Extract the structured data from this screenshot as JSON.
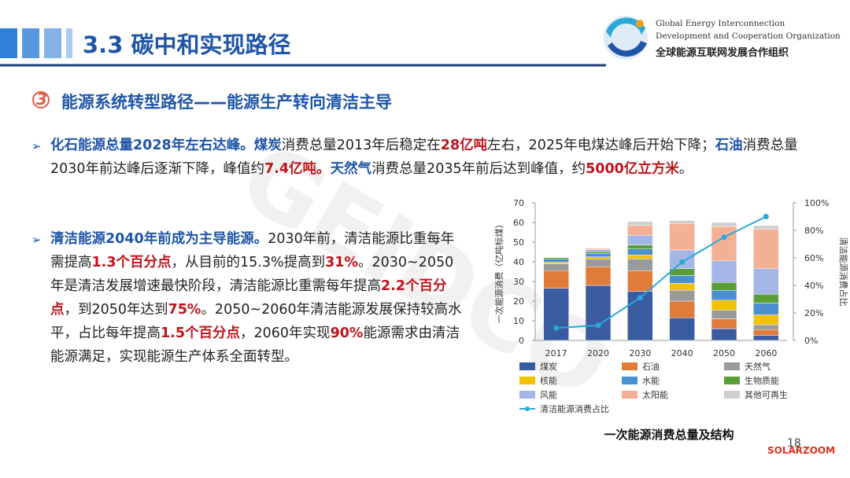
{
  "header": {
    "title": "3.3 碳中和实现路径",
    "logo_en_1": "Global Energy Interconnection",
    "logo_en_2": "Development and Cooperation Organization",
    "logo_cn": "全球能源互联网发展合作组织"
  },
  "section": {
    "number": "3",
    "title": "能源系统转型路径——能源生产转向清洁主导"
  },
  "bullets": [
    {
      "segments": [
        {
          "text": "化石能源总量2028年左右达峰。",
          "style": "blue"
        },
        {
          "text": "煤炭",
          "style": "blue"
        },
        {
          "text": "消费总量2013年后稳定在",
          "style": "normal"
        },
        {
          "text": "28亿吨",
          "style": "red"
        },
        {
          "text": "左右，2025年电煤达峰后开始下降；",
          "style": "normal"
        },
        {
          "text": "石油",
          "style": "blue"
        },
        {
          "text": "消费总量2030年前达峰后逐渐下降，峰值约",
          "style": "normal"
        },
        {
          "text": "7.4亿吨。",
          "style": "red"
        },
        {
          "text": "天然气",
          "style": "blue"
        },
        {
          "text": "消费总量2035年前后达到峰值，约",
          "style": "normal"
        },
        {
          "text": "5000亿立方米",
          "style": "red"
        },
        {
          "text": "。",
          "style": "normal"
        }
      ]
    },
    {
      "segments": [
        {
          "text": "清洁能源2040年前成为主导能源。",
          "style": "blue"
        },
        {
          "text": "2030年前，清洁能源比重每年需提高",
          "style": "normal"
        },
        {
          "text": "1.3个百分点",
          "style": "red"
        },
        {
          "text": "，从目前的15.3%提高到",
          "style": "normal"
        },
        {
          "text": "31%",
          "style": "red"
        },
        {
          "text": "。2030~2050年是清洁发展增速最快阶段，清洁能源比重需每年提高",
          "style": "normal"
        },
        {
          "text": "2.2个百分点",
          "style": "red"
        },
        {
          "text": "，到2050年达到",
          "style": "normal"
        },
        {
          "text": "75%",
          "style": "red"
        },
        {
          "text": "。2050~2060年清洁能源发展保持较高水平，占比每年提高",
          "style": "normal"
        },
        {
          "text": "1.5个百分点",
          "style": "red"
        },
        {
          "text": "，2060年实现",
          "style": "normal"
        },
        {
          "text": "90%",
          "style": "red"
        },
        {
          "text": "能源需求由清洁能源满足，实现能源生产体系全面转型。",
          "style": "normal"
        }
      ]
    }
  ],
  "chart_data": {
    "type": "stacked-bar-line",
    "title": "一次能源消费总量及结构",
    "y_label": "一次能源消费（亿吨标煤）",
    "y2_label": "清洁能源消费占比",
    "categories": [
      "2017",
      "2020",
      "2030",
      "2040",
      "2050",
      "2060"
    ],
    "ylim": [
      0,
      70
    ],
    "yticks": [
      0,
      10,
      20,
      30,
      40,
      50,
      60,
      70
    ],
    "y2lim": [
      0,
      100
    ],
    "y2ticks": [
      {
        "value": 0,
        "label": "0%"
      },
      {
        "value": 20,
        "label": "20%"
      },
      {
        "value": 40,
        "label": "40%"
      },
      {
        "value": 60,
        "label": "60%"
      },
      {
        "value": 80,
        "label": "80%"
      },
      {
        "value": 100,
        "label": "100%"
      }
    ],
    "series": [
      {
        "name": "煤炭",
        "color": "#3a5ba0",
        "values": [
          26.5,
          28,
          25,
          11.5,
          6,
          2.5
        ]
      },
      {
        "name": "石油",
        "color": "#e07b39",
        "values": [
          9,
          9.5,
          10.5,
          8.5,
          5,
          3
        ]
      },
      {
        "name": "天然气",
        "color": "#9a9a9a",
        "values": [
          3.5,
          4,
          6,
          5.5,
          4.5,
          2.5
        ]
      },
      {
        "name": "核能",
        "color": "#f2c200",
        "values": [
          0.8,
          1,
          2,
          3.5,
          5,
          5
        ]
      },
      {
        "name": "水能",
        "color": "#4a90d0",
        "values": [
          1.5,
          1.8,
          3,
          4,
          5,
          6
        ]
      },
      {
        "name": "生物质能",
        "color": "#5a9e3a",
        "values": [
          0.8,
          0.8,
          2,
          3.5,
          4,
          4.5
        ]
      },
      {
        "name": "风能",
        "color": "#a3b6e6",
        "values": [
          0.2,
          1,
          5,
          9.5,
          11,
          13
        ]
      },
      {
        "name": "太阳能",
        "color": "#f4b093",
        "values": [
          0.1,
          0.7,
          5,
          13.5,
          17.5,
          20
        ]
      },
      {
        "name": "其他可再生",
        "color": "#cfcfcf",
        "values": [
          0.2,
          0.3,
          2,
          1.5,
          2,
          2
        ]
      },
      {
        "name": "清洁能源消费占比",
        "color": "#2aa8d8",
        "axis": "y2",
        "values": [
          9,
          11,
          31,
          57,
          75,
          90
        ]
      }
    ]
  },
  "page_number": "18",
  "watermark": "GEIDCO",
  "source_mark": "SOLARZOOM"
}
